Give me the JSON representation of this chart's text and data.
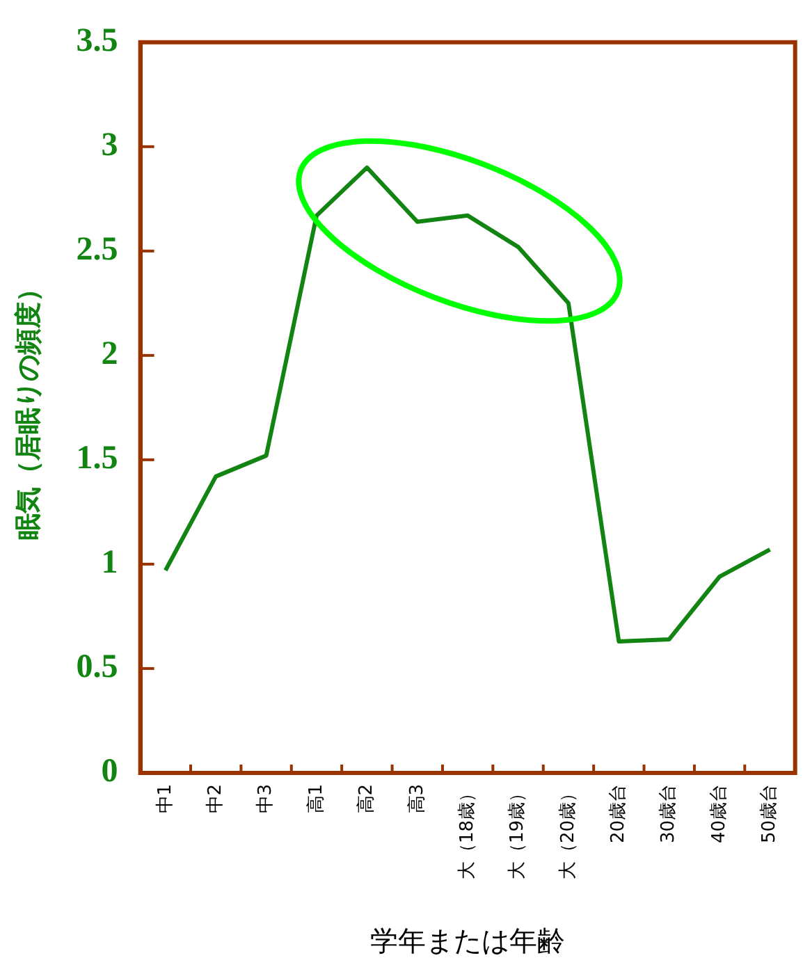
{
  "chart_data": {
    "type": "line",
    "xlabel": "学年または年齢",
    "ylabel": "眠気（居眠りの頻度）",
    "categories": [
      "中1",
      "中2",
      "中3",
      "高1",
      "高2",
      "高3",
      "大（18歳）",
      "大（19歳）",
      "大（20歳）",
      "20歳台",
      "30歳台",
      "40歳台",
      "50歳台"
    ],
    "series": [
      {
        "color": "#128412",
        "values": [
          0.97,
          1.42,
          1.52,
          2.67,
          2.9,
          2.64,
          2.67,
          2.52,
          2.25,
          0.63,
          0.64,
          0.94,
          1.07
        ]
      }
    ],
    "ylim": [
      0,
      3.5
    ],
    "yticks": [
      0,
      0.5,
      1,
      1.5,
      2,
      2.5,
      3,
      3.5
    ],
    "grid": false,
    "legend": false,
    "marker": "none",
    "line_style": "solid"
  }
}
